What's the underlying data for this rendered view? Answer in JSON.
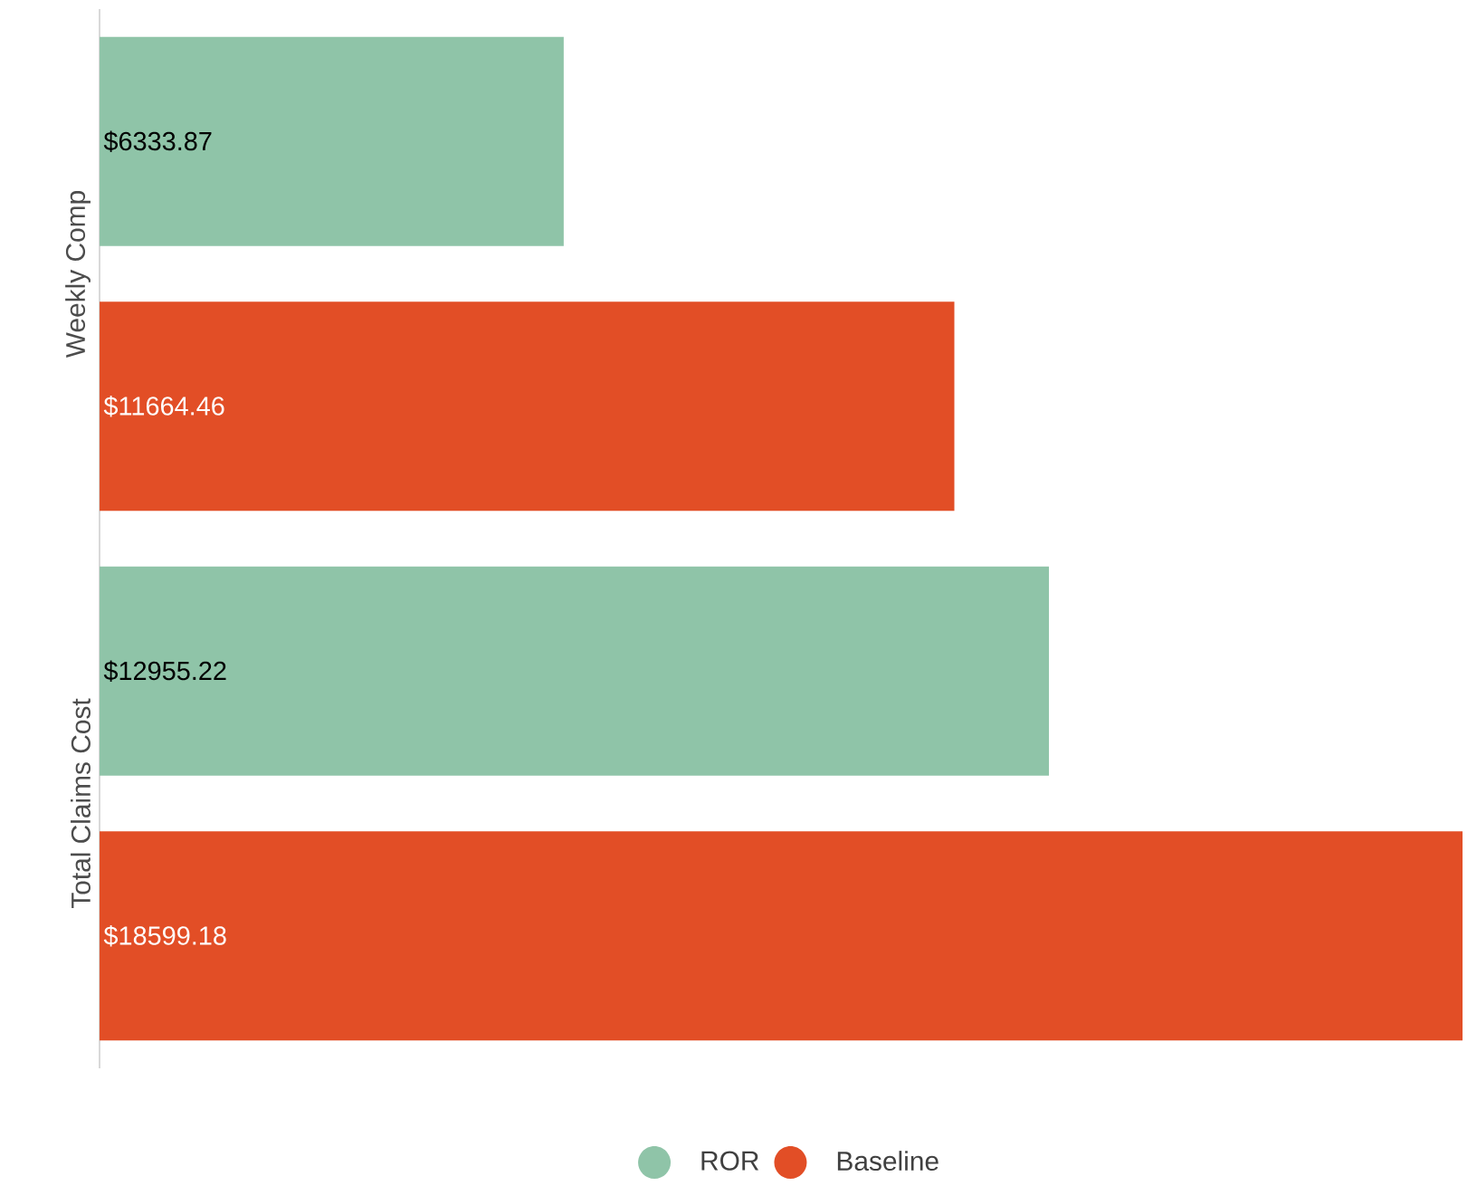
{
  "chart_data": {
    "type": "bar",
    "orientation": "horizontal",
    "categories": [
      "Weekly Comp",
      "Total Claims Cost"
    ],
    "series": [
      {
        "name": "ROR",
        "color": "#8fc4a8",
        "values": [
          6333.87,
          12955.22
        ],
        "value_labels": [
          "$6333.87",
          "$12955.22"
        ]
      },
      {
        "name": "Baseline",
        "color": "#e24e26",
        "values": [
          11664.46,
          18599.18
        ],
        "value_labels": [
          "$11664.46",
          "$18599.18"
        ]
      }
    ],
    "legend": "bottom"
  }
}
